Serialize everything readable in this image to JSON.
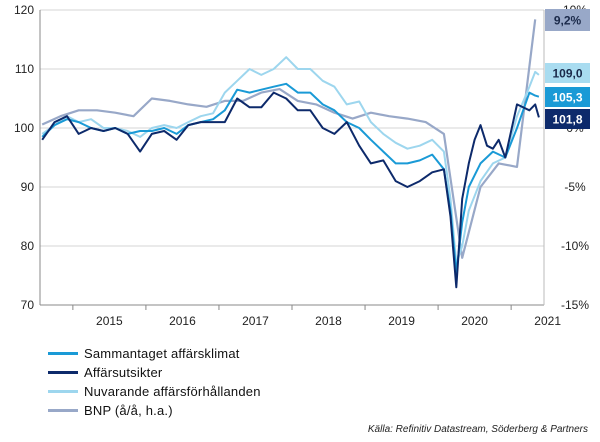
{
  "chart_data": {
    "type": "line",
    "left_axis": {
      "ylim": [
        70,
        120
      ],
      "ticks": [
        70,
        80,
        90,
        100,
        110,
        120
      ]
    },
    "right_axis": {
      "ylim": [
        -15,
        10
      ],
      "ticks": [
        "-15%",
        "-10%",
        "-5%",
        "0%",
        "5%",
        "10%"
      ],
      "unit": "%"
    },
    "x_years": [
      "2015",
      "2016",
      "2017",
      "2018",
      "2019",
      "2020",
      "2021"
    ],
    "xlim": [
      2014.55,
      2021.45
    ],
    "grid": "horizontal",
    "legend_position": "bottom-left",
    "series": [
      {
        "name": "Sammantaget affärsklimat",
        "axis": "left",
        "color": "#1a9ad6",
        "end_label": "105,3",
        "points": [
          [
            2014.58,
            98.5
          ],
          [
            2014.75,
            100.5
          ],
          [
            2014.92,
            101.5
          ],
          [
            2015.08,
            101
          ],
          [
            2015.25,
            100
          ],
          [
            2015.42,
            99.5
          ],
          [
            2015.58,
            100
          ],
          [
            2015.75,
            99
          ],
          [
            2015.92,
            99.5
          ],
          [
            2016.08,
            99.5
          ],
          [
            2016.25,
            100
          ],
          [
            2016.42,
            99
          ],
          [
            2016.58,
            100.5
          ],
          [
            2016.75,
            101
          ],
          [
            2016.92,
            101.5
          ],
          [
            2017.08,
            103
          ],
          [
            2017.25,
            106.5
          ],
          [
            2017.42,
            106
          ],
          [
            2017.58,
            106.5
          ],
          [
            2017.75,
            107
          ],
          [
            2017.92,
            107.5
          ],
          [
            2018.08,
            106
          ],
          [
            2018.25,
            106
          ],
          [
            2018.42,
            104
          ],
          [
            2018.58,
            103
          ],
          [
            2018.75,
            101
          ],
          [
            2018.92,
            100
          ],
          [
            2019.08,
            98
          ],
          [
            2019.25,
            96
          ],
          [
            2019.42,
            94
          ],
          [
            2019.58,
            94
          ],
          [
            2019.75,
            94.5
          ],
          [
            2019.92,
            95.5
          ],
          [
            2020.08,
            93
          ],
          [
            2020.17,
            86
          ],
          [
            2020.25,
            75.5
          ],
          [
            2020.33,
            84
          ],
          [
            2020.42,
            90
          ],
          [
            2020.58,
            94
          ],
          [
            2020.75,
            96
          ],
          [
            2020.92,
            95
          ],
          [
            2021.08,
            100
          ],
          [
            2021.25,
            106
          ],
          [
            2021.33,
            105.5
          ],
          [
            2021.38,
            105.3
          ]
        ]
      },
      {
        "name": "Affärsutsikter",
        "axis": "left",
        "color": "#0d2a6b",
        "end_label": "101,8",
        "points": [
          [
            2014.58,
            98
          ],
          [
            2014.75,
            101
          ],
          [
            2014.92,
            102
          ],
          [
            2015.08,
            99
          ],
          [
            2015.25,
            100
          ],
          [
            2015.42,
            99.5
          ],
          [
            2015.58,
            100
          ],
          [
            2015.75,
            99
          ],
          [
            2015.92,
            96
          ],
          [
            2016.08,
            99
          ],
          [
            2016.25,
            99.5
          ],
          [
            2016.42,
            98
          ],
          [
            2016.58,
            100.5
          ],
          [
            2016.75,
            101
          ],
          [
            2016.92,
            101
          ],
          [
            2017.08,
            101
          ],
          [
            2017.25,
            105
          ],
          [
            2017.42,
            103.5
          ],
          [
            2017.58,
            103.5
          ],
          [
            2017.75,
            106
          ],
          [
            2017.92,
            105
          ],
          [
            2018.08,
            103
          ],
          [
            2018.25,
            103
          ],
          [
            2018.42,
            100
          ],
          [
            2018.58,
            99
          ],
          [
            2018.75,
            101
          ],
          [
            2018.92,
            97
          ],
          [
            2019.08,
            94
          ],
          [
            2019.25,
            94.5
          ],
          [
            2019.42,
            91
          ],
          [
            2019.58,
            90
          ],
          [
            2019.75,
            91
          ],
          [
            2019.92,
            92.5
          ],
          [
            2020.08,
            93
          ],
          [
            2020.17,
            85
          ],
          [
            2020.25,
            73
          ],
          [
            2020.33,
            88
          ],
          [
            2020.42,
            94
          ],
          [
            2020.5,
            98
          ],
          [
            2020.58,
            100.5
          ],
          [
            2020.67,
            97
          ],
          [
            2020.75,
            96.5
          ],
          [
            2020.83,
            98
          ],
          [
            2020.92,
            95
          ],
          [
            2021.08,
            104
          ],
          [
            2021.25,
            103
          ],
          [
            2021.33,
            104
          ],
          [
            2021.38,
            101.8
          ]
        ]
      },
      {
        "name": "Nuvarande affärsförhållanden",
        "axis": "left",
        "color": "#9dd6ee",
        "end_label": "109,0",
        "points": [
          [
            2014.58,
            99
          ],
          [
            2014.75,
            100.5
          ],
          [
            2014.92,
            102
          ],
          [
            2015.08,
            101
          ],
          [
            2015.25,
            101.5
          ],
          [
            2015.42,
            100
          ],
          [
            2015.58,
            100
          ],
          [
            2015.75,
            99.5
          ],
          [
            2015.92,
            98.5
          ],
          [
            2016.08,
            100
          ],
          [
            2016.25,
            100.5
          ],
          [
            2016.42,
            100
          ],
          [
            2016.58,
            101
          ],
          [
            2016.75,
            102
          ],
          [
            2016.92,
            102.5
          ],
          [
            2017.08,
            106
          ],
          [
            2017.25,
            108
          ],
          [
            2017.42,
            110
          ],
          [
            2017.58,
            109
          ],
          [
            2017.75,
            110
          ],
          [
            2017.92,
            112
          ],
          [
            2018.08,
            110
          ],
          [
            2018.25,
            110
          ],
          [
            2018.42,
            108
          ],
          [
            2018.58,
            107
          ],
          [
            2018.75,
            104
          ],
          [
            2018.92,
            104.5
          ],
          [
            2019.08,
            101
          ],
          [
            2019.25,
            99
          ],
          [
            2019.42,
            97.5
          ],
          [
            2019.58,
            96.5
          ],
          [
            2019.75,
            97
          ],
          [
            2019.92,
            98
          ],
          [
            2020.08,
            96
          ],
          [
            2020.17,
            88
          ],
          [
            2020.25,
            77
          ],
          [
            2020.33,
            80
          ],
          [
            2020.42,
            86
          ],
          [
            2020.58,
            91
          ],
          [
            2020.75,
            94
          ],
          [
            2020.92,
            95
          ],
          [
            2021.08,
            102
          ],
          [
            2021.25,
            107
          ],
          [
            2021.33,
            109.5
          ],
          [
            2021.38,
            109.0
          ]
        ]
      },
      {
        "name": "BNP (å/å, h.a.)",
        "axis": "right",
        "color": "#98a8c8",
        "end_label": "9,2%",
        "points": [
          [
            2014.58,
            0.3
          ],
          [
            2014.83,
            1.0
          ],
          [
            2015.08,
            1.5
          ],
          [
            2015.33,
            1.5
          ],
          [
            2015.58,
            1.3
          ],
          [
            2015.83,
            1.0
          ],
          [
            2016.08,
            2.5
          ],
          [
            2016.33,
            2.3
          ],
          [
            2016.58,
            2.0
          ],
          [
            2016.83,
            1.8
          ],
          [
            2017.08,
            2.3
          ],
          [
            2017.33,
            2.3
          ],
          [
            2017.58,
            3.0
          ],
          [
            2017.83,
            3.3
          ],
          [
            2018.08,
            2.3
          ],
          [
            2018.33,
            2.0
          ],
          [
            2018.58,
            1.3
          ],
          [
            2018.83,
            0.8
          ],
          [
            2019.08,
            1.3
          ],
          [
            2019.33,
            1.0
          ],
          [
            2019.58,
            0.8
          ],
          [
            2019.83,
            0.5
          ],
          [
            2020.08,
            -0.5
          ],
          [
            2020.33,
            -11.0
          ],
          [
            2020.58,
            -5.0
          ],
          [
            2020.83,
            -3.0
          ],
          [
            2021.08,
            -3.3
          ],
          [
            2021.33,
            9.2
          ]
        ]
      }
    ]
  },
  "source_text": "Källa: Refinitiv Datastream, Söderberg & Partners"
}
